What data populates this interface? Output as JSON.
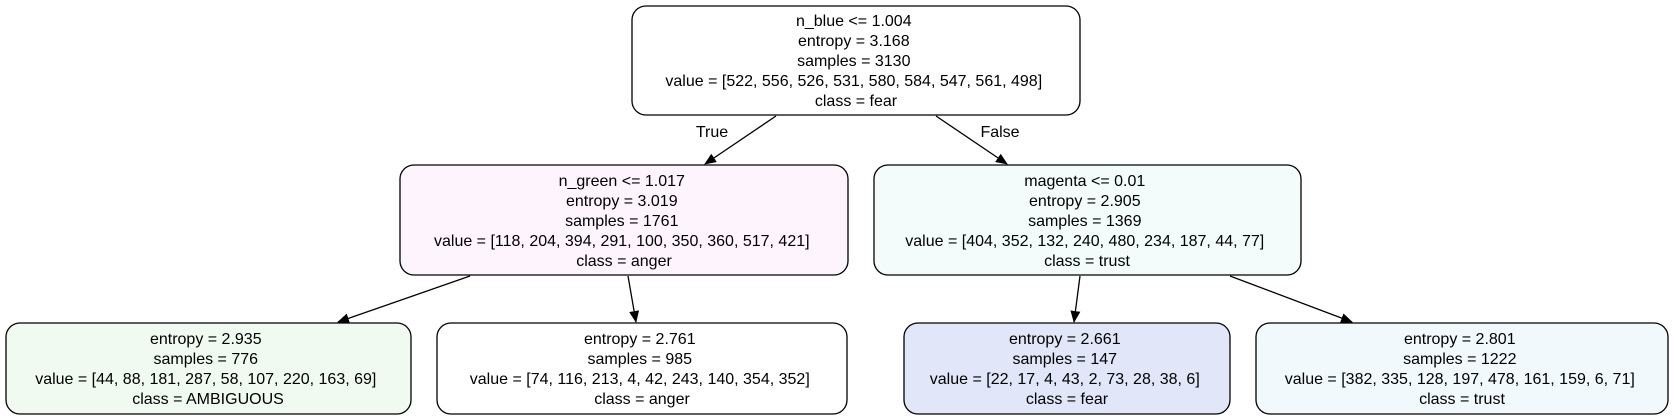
{
  "nodes": [
    {
      "id": "root",
      "fill": "#ffffff",
      "lines": [
        "n_blue <= 1.004",
        "entropy = 3.168",
        "samples = 3130",
        "value = [522, 556, 526, 531, 580, 584, 547, 561, 498]",
        "class = fear"
      ]
    },
    {
      "id": "left",
      "fill": "#fdf4fd",
      "lines": [
        "n_green <= 1.017",
        "entropy = 3.019",
        "samples = 1761",
        "value = [118, 204, 394, 291, 100, 350, 360, 517, 421]",
        "class = anger"
      ]
    },
    {
      "id": "right",
      "fill": "#f3fcfb",
      "lines": [
        "magenta <= 0.01",
        "entropy = 2.905",
        "samples = 1369",
        "value = [404, 352, 132, 240, 480, 234, 187, 44, 77]",
        "class = trust"
      ]
    },
    {
      "id": "leaf1",
      "fill": "#f1faf1",
      "lines": [
        "entropy = 2.935",
        "samples = 776",
        "value = [44, 88, 181, 287, 58, 107, 220, 163, 69]",
        "class = AMBIGUOUS"
      ]
    },
    {
      "id": "leaf2",
      "fill": "#ffffff",
      "lines": [
        "entropy = 2.761",
        "samples = 985",
        "value = [74, 116, 213, 4, 42, 243, 140, 354, 352]",
        "class = anger"
      ]
    },
    {
      "id": "leaf3",
      "fill": "#e1e6f8",
      "lines": [
        "entropy = 2.661",
        "samples = 147",
        "value = [22, 17, 4, 43, 2, 73, 28, 38, 6]",
        "class = fear"
      ]
    },
    {
      "id": "leaf4",
      "fill": "#f2f9fc",
      "lines": [
        "entropy = 2.801",
        "samples = 1222",
        "value = [382, 335, 128, 197, 478, 161, 159, 6, 71]",
        "class = trust"
      ]
    }
  ],
  "edges": [
    {
      "from": "root",
      "to": "left",
      "label": "True"
    },
    {
      "from": "root",
      "to": "right",
      "label": "False"
    },
    {
      "from": "left",
      "to": "leaf1",
      "label": ""
    },
    {
      "from": "left",
      "to": "leaf2",
      "label": ""
    },
    {
      "from": "right",
      "to": "leaf3",
      "label": ""
    },
    {
      "from": "right",
      "to": "leaf4",
      "label": ""
    }
  ]
}
